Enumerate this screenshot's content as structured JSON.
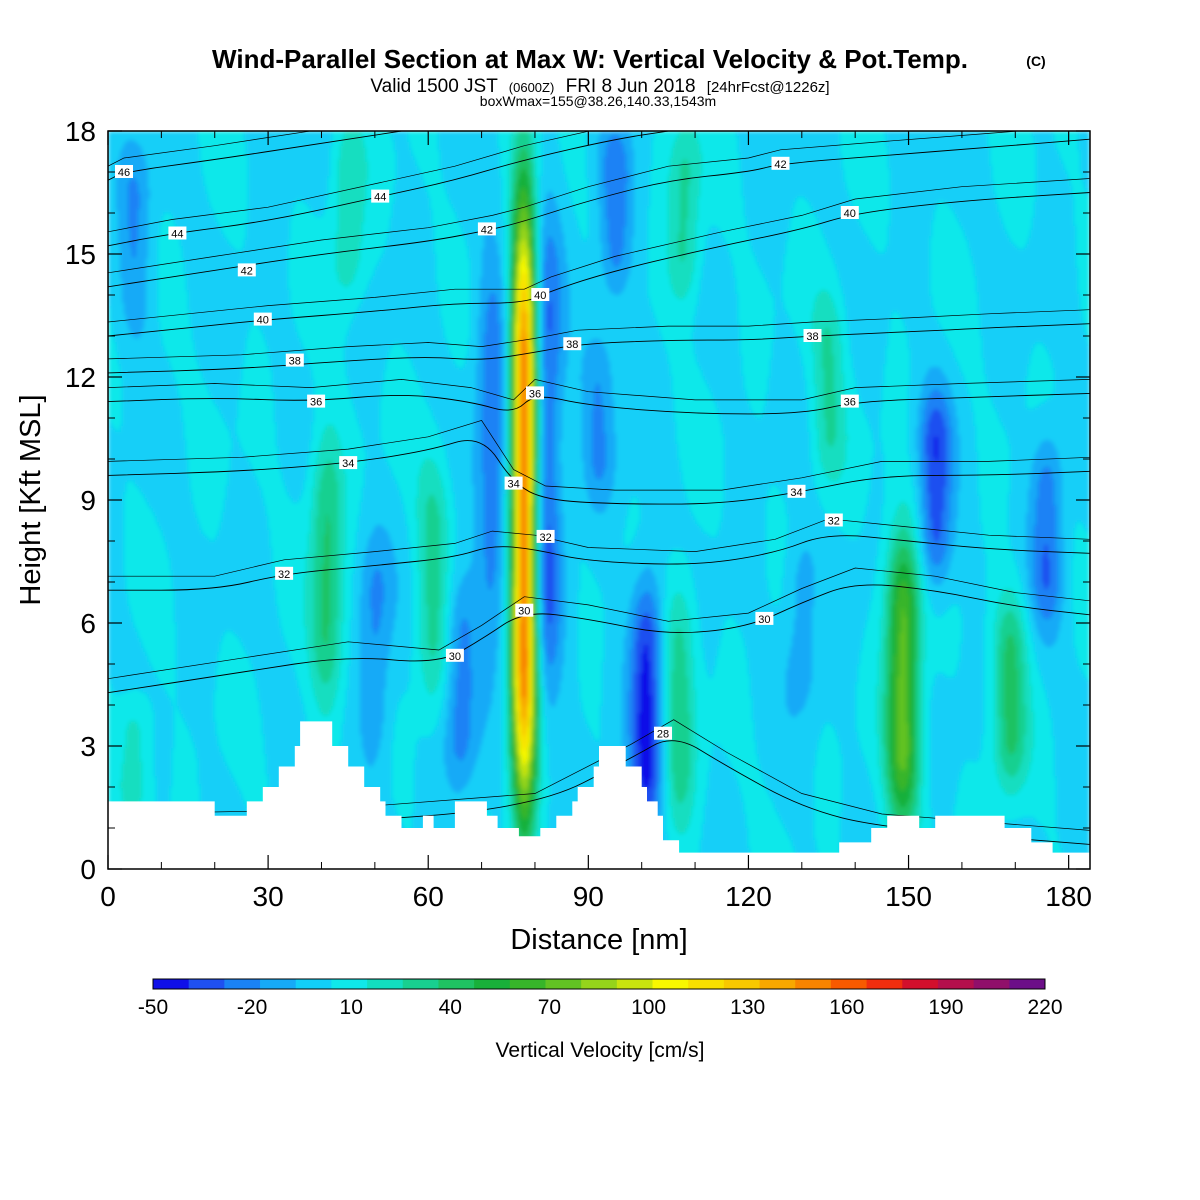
{
  "title": {
    "main": "Wind-Parallel Section at Max W: Vertical Velocity & Pot.Temp.",
    "copyright": "(C)",
    "valid_prefix": "Valid 1500 JST",
    "valid_utc": "(0600Z)",
    "valid_date": "FRI 8 Jun 2018",
    "forecast": "[24hrFcst@1226z]",
    "boxinfo": "boxWmax=155@38.26,140.33,1543m"
  },
  "chart_data": {
    "type": "heatmap",
    "xlabel": "Distance [nm]",
    "ylabel": "Height [Kft MSL]",
    "xlim": [
      0,
      184
    ],
    "ylim": [
      0,
      18
    ],
    "xticks": [
      0,
      30,
      60,
      90,
      120,
      150,
      180
    ],
    "yticks": [
      0,
      3,
      6,
      9,
      12,
      15,
      18
    ],
    "colorbar": {
      "label": "Vertical Velocity [cm/s]",
      "tick_labels": [
        -50,
        -20,
        10,
        40,
        70,
        100,
        130,
        160,
        190,
        220
      ],
      "colors": [
        "#1010e8",
        "#1f50f0",
        "#1a82f5",
        "#16aaf7",
        "#12cff8",
        "#10e8ea",
        "#12dec0",
        "#18d090",
        "#1fc262",
        "#19b03a",
        "#37b52a",
        "#62c223",
        "#95d41b",
        "#c8e40f",
        "#f8f800",
        "#f8e000",
        "#f8c800",
        "#f8a800",
        "#f88400",
        "#f85a00",
        "#f02e0e",
        "#d2102c",
        "#b4104c",
        "#90106a",
        "#6c0f88"
      ]
    },
    "base_value_cm_s": 3,
    "updrafts": [
      {
        "x": 78,
        "z_bottom": 1.5,
        "z_top": 16.2,
        "peak": 155
      },
      {
        "x": 149,
        "z_bottom": 1.2,
        "z_top": 8.0,
        "peak": 70
      },
      {
        "x": 41,
        "z_bottom": 4.0,
        "z_top": 10.5,
        "peak": 35
      },
      {
        "x": 169,
        "z_bottom": 2.0,
        "z_top": 6.5,
        "peak": 35
      },
      {
        "x": 107,
        "z_bottom": 1.0,
        "z_top": 7.0,
        "peak": 28
      },
      {
        "x": 61,
        "z_bottom": 4.0,
        "z_top": 10.0,
        "peak": 25
      },
      {
        "x": 45,
        "z_bottom": 14.0,
        "z_top": 18.0,
        "peak": 22
      },
      {
        "x": 108,
        "z_bottom": 14.0,
        "z_top": 18.0,
        "peak": 25
      },
      {
        "x": 135,
        "z_bottom": 9.5,
        "z_top": 14.0,
        "peak": 22
      },
      {
        "x": 5,
        "z_bottom": 1.5,
        "z_top": 4.0,
        "peak": 20
      }
    ],
    "downdrafts": [
      {
        "x": 101,
        "z_bottom": 1.0,
        "z_top": 7.0,
        "peak": -45
      },
      {
        "x": 82,
        "z_bottom": 4.0,
        "z_top": 16.0,
        "peak": -35
      },
      {
        "x": 72,
        "z_bottom": 5.5,
        "z_top": 15.0,
        "peak": -28
      },
      {
        "x": 155,
        "z_bottom": 7.0,
        "z_top": 11.5,
        "peak": -38
      },
      {
        "x": 176,
        "z_bottom": 6.0,
        "z_top": 10.5,
        "peak": -28
      },
      {
        "x": 66,
        "z_bottom": 2.0,
        "z_top": 7.0,
        "peak": -25
      },
      {
        "x": 50,
        "z_bottom": 2.5,
        "z_top": 8.0,
        "peak": -22
      },
      {
        "x": 95,
        "z_bottom": 14.0,
        "z_top": 18.0,
        "peak": -25
      },
      {
        "x": 92,
        "z_bottom": 9.0,
        "z_top": 13.0,
        "peak": -20
      },
      {
        "x": 5,
        "z_bottom": 13.0,
        "z_top": 17.5,
        "peak": -20
      },
      {
        "x": 130,
        "z_bottom": 4.0,
        "z_top": 8.0,
        "peak": -18
      }
    ],
    "terrain_kft": [
      [
        0,
        1.65
      ],
      [
        20,
        1.65
      ],
      [
        20,
        1.3
      ],
      [
        26,
        1.3
      ],
      [
        26,
        1.65
      ],
      [
        29,
        1.65
      ],
      [
        29,
        2.0
      ],
      [
        32,
        2.0
      ],
      [
        32,
        2.5
      ],
      [
        35,
        2.5
      ],
      [
        35,
        3.0
      ],
      [
        36,
        3.0
      ],
      [
        36,
        3.6
      ],
      [
        42,
        3.6
      ],
      [
        42,
        3.0
      ],
      [
        45,
        3.0
      ],
      [
        45,
        2.5
      ],
      [
        48,
        2.5
      ],
      [
        48,
        2.0
      ],
      [
        51,
        2.0
      ],
      [
        51,
        1.65
      ],
      [
        52,
        1.65
      ],
      [
        52,
        1.3
      ],
      [
        55,
        1.3
      ],
      [
        55,
        1.0
      ],
      [
        59,
        1.0
      ],
      [
        59,
        1.3
      ],
      [
        61,
        1.3
      ],
      [
        61,
        1.0
      ],
      [
        65,
        1.0
      ],
      [
        65,
        1.65
      ],
      [
        71,
        1.65
      ],
      [
        71,
        1.3
      ],
      [
        73,
        1.3
      ],
      [
        73,
        1.0
      ],
      [
        77,
        1.0
      ],
      [
        77,
        0.8
      ],
      [
        81,
        0.8
      ],
      [
        81,
        1.0
      ],
      [
        84,
        1.0
      ],
      [
        84,
        1.3
      ],
      [
        87,
        1.3
      ],
      [
        87,
        1.65
      ],
      [
        88,
        1.65
      ],
      [
        88,
        2.0
      ],
      [
        91,
        2.0
      ],
      [
        91,
        2.5
      ],
      [
        92,
        2.5
      ],
      [
        92,
        3.0
      ],
      [
        97,
        3.0
      ],
      [
        97,
        2.5
      ],
      [
        100,
        2.5
      ],
      [
        100,
        2.0
      ],
      [
        101,
        2.0
      ],
      [
        101,
        1.65
      ],
      [
        103,
        1.65
      ],
      [
        103,
        1.3
      ],
      [
        104,
        1.3
      ],
      [
        104,
        0.7
      ],
      [
        107,
        0.7
      ],
      [
        107,
        0.4
      ],
      [
        137,
        0.4
      ],
      [
        137,
        0.65
      ],
      [
        143,
        0.65
      ],
      [
        143,
        1.0
      ],
      [
        146,
        1.0
      ],
      [
        146,
        1.3
      ],
      [
        152,
        1.3
      ],
      [
        152,
        1.0
      ],
      [
        155,
        1.0
      ],
      [
        155,
        1.3
      ],
      [
        168,
        1.3
      ],
      [
        168,
        1.0
      ],
      [
        173,
        1.0
      ],
      [
        173,
        0.65
      ],
      [
        177,
        0.65
      ],
      [
        177,
        0.4
      ],
      [
        184,
        0.4
      ]
    ],
    "theta_contours": [
      {
        "label": "28",
        "points": [
          [
            0,
            1.0
          ],
          [
            40,
            1.1
          ],
          [
            80,
            1.5
          ],
          [
            98,
            2.7
          ],
          [
            106,
            3.3
          ],
          [
            116,
            2.5
          ],
          [
            130,
            1.5
          ],
          [
            145,
            1.0
          ],
          [
            184,
            0.6
          ]
        ]
      },
      {
        "label": "30",
        "points": [
          [
            0,
            4.3
          ],
          [
            25,
            4.8
          ],
          [
            45,
            5.2
          ],
          [
            62,
            5.0
          ],
          [
            70,
            5.6
          ],
          [
            78,
            6.3
          ],
          [
            90,
            6.1
          ],
          [
            105,
            5.7
          ],
          [
            120,
            5.9
          ],
          [
            130,
            6.5
          ],
          [
            140,
            7.0
          ],
          [
            155,
            6.8
          ],
          [
            170,
            6.4
          ],
          [
            184,
            6.2
          ]
        ]
      },
      {
        "label": "32",
        "points": [
          [
            0,
            6.8
          ],
          [
            20,
            6.8
          ],
          [
            33,
            7.2
          ],
          [
            50,
            7.4
          ],
          [
            65,
            7.6
          ],
          [
            72,
            7.9
          ],
          [
            80,
            7.8
          ],
          [
            90,
            7.5
          ],
          [
            110,
            7.4
          ],
          [
            125,
            7.7
          ],
          [
            135,
            8.2
          ],
          [
            150,
            8.0
          ],
          [
            165,
            7.8
          ],
          [
            184,
            7.7
          ]
        ]
      },
      {
        "label": "34",
        "points": [
          [
            0,
            9.6
          ],
          [
            25,
            9.7
          ],
          [
            45,
            9.9
          ],
          [
            60,
            10.2
          ],
          [
            70,
            10.6
          ],
          [
            76,
            9.4
          ],
          [
            82,
            9.0
          ],
          [
            95,
            8.9
          ],
          [
            115,
            8.9
          ],
          [
            130,
            9.2
          ],
          [
            145,
            9.6
          ],
          [
            165,
            9.6
          ],
          [
            184,
            9.7
          ]
        ]
      },
      {
        "label": "36",
        "points": [
          [
            0,
            11.4
          ],
          [
            20,
            11.5
          ],
          [
            38,
            11.4
          ],
          [
            55,
            11.6
          ],
          [
            68,
            11.4
          ],
          [
            76,
            11.1
          ],
          [
            80,
            11.6
          ],
          [
            90,
            11.3
          ],
          [
            110,
            11.1
          ],
          [
            130,
            11.1
          ],
          [
            140,
            11.4
          ],
          [
            160,
            11.5
          ],
          [
            184,
            11.6
          ]
        ]
      },
      {
        "label": "38",
        "points": [
          [
            0,
            12.1
          ],
          [
            25,
            12.2
          ],
          [
            45,
            12.4
          ],
          [
            60,
            12.5
          ],
          [
            70,
            12.4
          ],
          [
            80,
            12.6
          ],
          [
            88,
            12.8
          ],
          [
            105,
            12.9
          ],
          [
            120,
            12.9
          ],
          [
            132,
            13.0
          ],
          [
            150,
            13.1
          ],
          [
            165,
            13.2
          ],
          [
            184,
            13.3
          ]
        ]
      },
      {
        "label": "40",
        "points": [
          [
            0,
            13.0
          ],
          [
            15,
            13.2
          ],
          [
            30,
            13.4
          ],
          [
            50,
            13.6
          ],
          [
            65,
            13.8
          ],
          [
            78,
            13.8
          ],
          [
            83,
            14.1
          ],
          [
            95,
            14.6
          ],
          [
            115,
            15.2
          ],
          [
            130,
            15.6
          ],
          [
            140,
            16.0
          ],
          [
            160,
            16.3
          ],
          [
            184,
            16.5
          ]
        ]
      },
      {
        "label": "42",
        "points": [
          [
            0,
            14.2
          ],
          [
            20,
            14.6
          ],
          [
            40,
            15.0
          ],
          [
            60,
            15.3
          ],
          [
            72,
            15.6
          ],
          [
            78,
            15.8
          ],
          [
            90,
            16.3
          ],
          [
            105,
            16.8
          ],
          [
            120,
            17.0
          ],
          [
            126,
            17.2
          ],
          [
            145,
            17.4
          ],
          [
            165,
            17.6
          ],
          [
            184,
            17.8
          ]
        ]
      },
      {
        "label": "44",
        "points": [
          [
            0,
            15.2
          ],
          [
            12,
            15.5
          ],
          [
            30,
            15.8
          ],
          [
            51,
            16.4
          ],
          [
            65,
            16.8
          ],
          [
            78,
            17.3
          ],
          [
            95,
            17.8
          ],
          [
            105,
            18.0
          ]
        ]
      },
      {
        "label": "46",
        "points": [
          [
            0,
            16.8
          ],
          [
            3,
            17.0
          ],
          [
            20,
            17.3
          ],
          [
            40,
            17.7
          ],
          [
            55,
            18.0
          ]
        ]
      }
    ],
    "contour_labels": [
      {
        "text": "46",
        "x": 3,
        "z": 17.0
      },
      {
        "text": "44",
        "x": 13,
        "z": 15.5
      },
      {
        "text": "44",
        "x": 51,
        "z": 16.4
      },
      {
        "text": "42",
        "x": 26,
        "z": 14.6
      },
      {
        "text": "42",
        "x": 71,
        "z": 15.6
      },
      {
        "text": "42",
        "x": 126,
        "z": 17.2
      },
      {
        "text": "40",
        "x": 29,
        "z": 13.4
      },
      {
        "text": "40",
        "x": 81,
        "z": 14.0
      },
      {
        "text": "40",
        "x": 139,
        "z": 16.0
      },
      {
        "text": "38",
        "x": 35,
        "z": 12.4
      },
      {
        "text": "38",
        "x": 87,
        "z": 12.8
      },
      {
        "text": "38",
        "x": 132,
        "z": 13.0
      },
      {
        "text": "36",
        "x": 39,
        "z": 11.4
      },
      {
        "text": "36",
        "x": 80,
        "z": 11.6
      },
      {
        "text": "36",
        "x": 139,
        "z": 11.4
      },
      {
        "text": "34",
        "x": 45,
        "z": 9.9
      },
      {
        "text": "34",
        "x": 76,
        "z": 9.4
      },
      {
        "text": "34",
        "x": 129,
        "z": 9.2
      },
      {
        "text": "32",
        "x": 33,
        "z": 7.2
      },
      {
        "text": "32",
        "x": 82,
        "z": 8.1
      },
      {
        "text": "32",
        "x": 136,
        "z": 8.5
      },
      {
        "text": "30",
        "x": 78,
        "z": 6.3
      },
      {
        "text": "30",
        "x": 65,
        "z": 5.2
      },
      {
        "text": "30",
        "x": 123,
        "z": 6.1
      },
      {
        "text": "28",
        "x": 104,
        "z": 3.3
      }
    ]
  }
}
